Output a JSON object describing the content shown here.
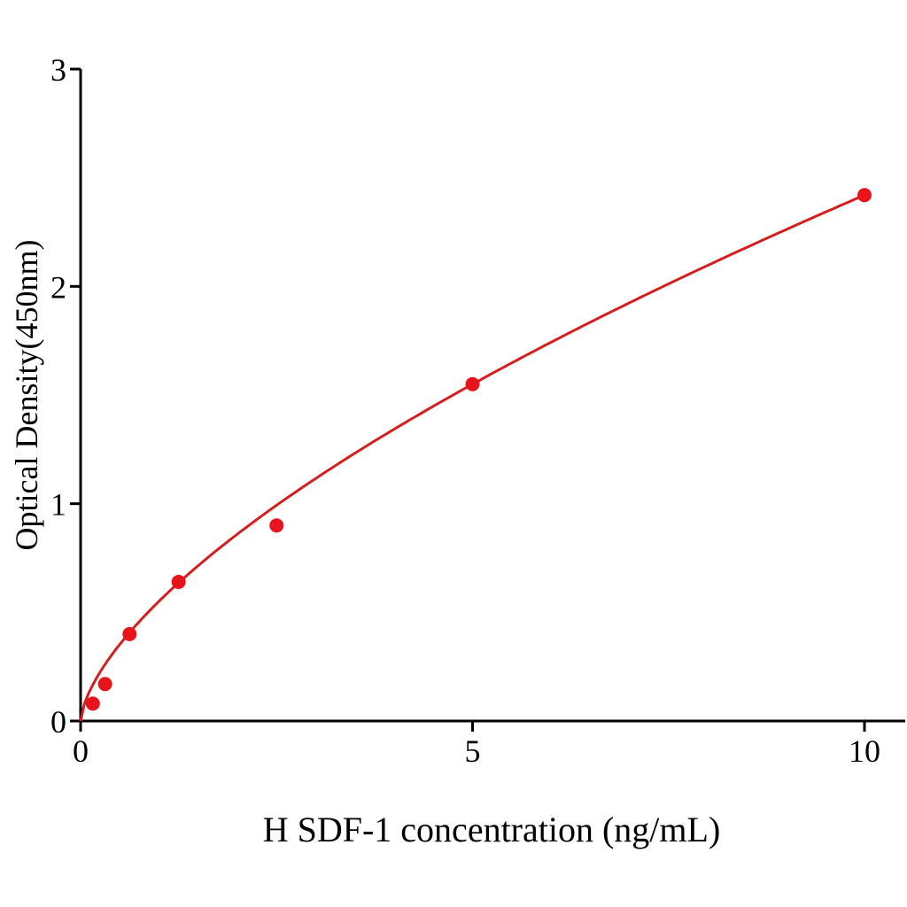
{
  "chart_data": {
    "type": "scatter",
    "title": "",
    "xlabel": "H SDF-1 concentration (ng/mL)",
    "ylabel": "Optical Density(450nm)",
    "xlim": [
      0,
      10
    ],
    "ylim": [
      0,
      3
    ],
    "xticks": [
      "0",
      "5",
      "10"
    ],
    "yticks": [
      "0",
      "1",
      "2",
      "3"
    ],
    "grid": false,
    "legend": "none",
    "points": {
      "x": [
        0.156,
        0.3125,
        0.625,
        1.25,
        2.5,
        5,
        10
      ],
      "y": [
        0.08,
        0.17,
        0.4,
        0.64,
        0.9,
        1.55,
        2.42
      ]
    },
    "fit_curve": true,
    "colors": {
      "points": "#e8141b",
      "curve": "#d41f1f",
      "axes": "#000000"
    }
  }
}
